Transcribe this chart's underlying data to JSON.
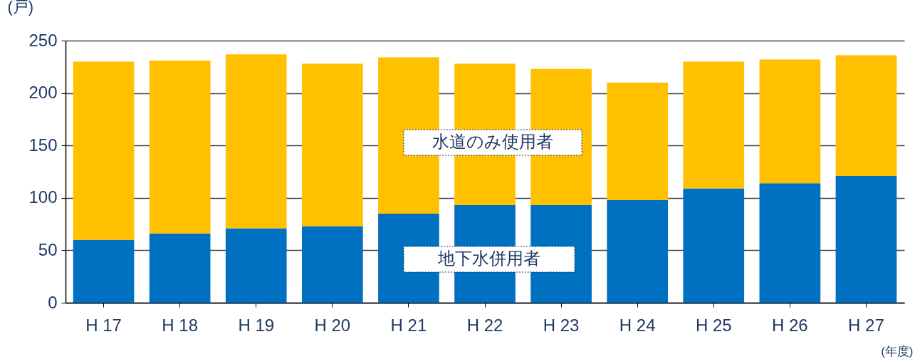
{
  "chart_data": {
    "type": "bar",
    "stacked": true,
    "xlabel": "(年度)",
    "ylabel": "(戸)",
    "categories": [
      "H 17",
      "H 18",
      "H 19",
      "H 20",
      "H 21",
      "H 22",
      "H 23",
      "H 24",
      "H 25",
      "H 26",
      "H 27"
    ],
    "series": [
      {
        "name": "地下水併用者",
        "color": "#0070c0",
        "values": [
          60,
          66,
          71,
          73,
          85,
          93,
          93,
          98,
          109,
          114,
          121
        ]
      },
      {
        "name": "水道のみ使用者",
        "color": "#ffc000",
        "values": [
          170,
          165,
          166,
          155,
          149,
          135,
          130,
          112,
          121,
          118,
          115
        ]
      }
    ],
    "ylim": [
      0,
      250
    ],
    "yticks": [
      0,
      50,
      100,
      150,
      200,
      250
    ],
    "grid": "y",
    "legend": false
  }
}
